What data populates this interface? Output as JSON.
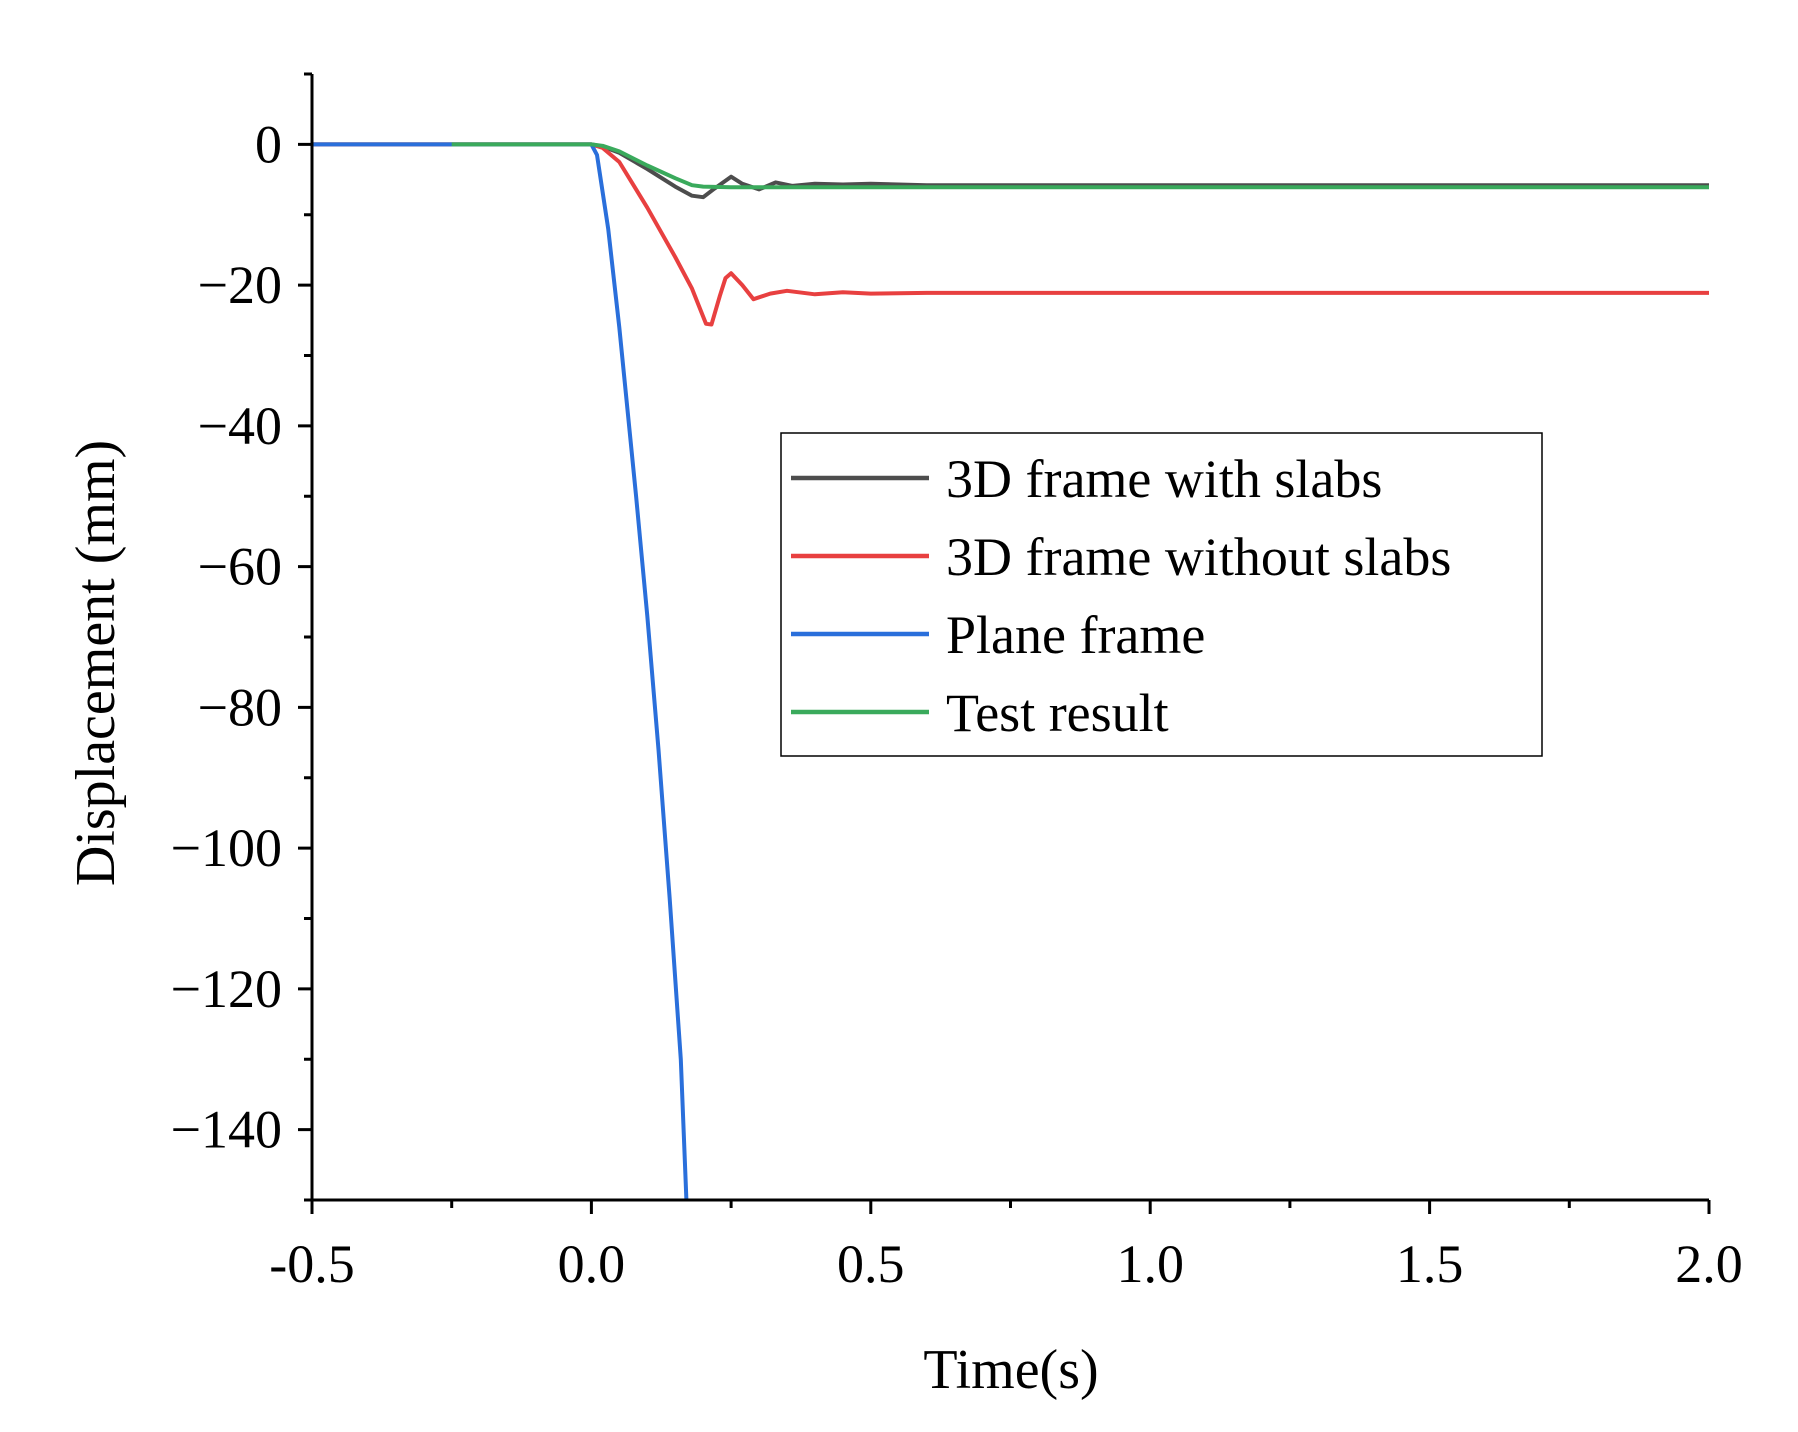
{
  "chart_data": {
    "type": "line",
    "title": "",
    "xlabel": "Time(s)",
    "ylabel": "Displacement (mm)",
    "xlim": [
      -0.5,
      2.0
    ],
    "ylim": [
      -150,
      10
    ],
    "xticks": [
      -0.5,
      0.0,
      0.5,
      1.0,
      1.5,
      2.0
    ],
    "xtick_labels": [
      "-0.5",
      "0.0",
      "0.5",
      "1.0",
      "1.5",
      "2.0"
    ],
    "yticks": [
      0,
      -20,
      -40,
      -60,
      -80,
      -100,
      -120,
      -140
    ],
    "ytick_labels": [
      "0",
      "−20",
      "−40",
      "−60",
      "−80",
      "−100",
      "−120",
      "−140"
    ],
    "grid": false,
    "legend_position": "center-right",
    "series": [
      {
        "name": "3D frame with slabs",
        "color": "#4d4d4d",
        "x": [
          -0.5,
          0.0,
          0.02,
          0.05,
          0.1,
          0.15,
          0.18,
          0.2,
          0.22,
          0.25,
          0.27,
          0.3,
          0.33,
          0.36,
          0.4,
          0.45,
          0.5,
          0.6,
          0.8,
          1.0,
          1.5,
          2.0
        ],
        "y": [
          0,
          0,
          -0.3,
          -1.2,
          -3.5,
          -6,
          -7.3,
          -7.5,
          -6.3,
          -4.6,
          -5.6,
          -6.4,
          -5.4,
          -5.9,
          -5.6,
          -5.7,
          -5.6,
          -5.8,
          -5.8,
          -5.8,
          -5.8,
          -5.8
        ]
      },
      {
        "name": "3D frame without slabs",
        "color": "#e84040",
        "x": [
          -0.5,
          0.0,
          0.02,
          0.05,
          0.1,
          0.15,
          0.18,
          0.205,
          0.215,
          0.23,
          0.24,
          0.25,
          0.27,
          0.29,
          0.32,
          0.35,
          0.4,
          0.45,
          0.5,
          0.6,
          1.0,
          1.5,
          2.0
        ],
        "y": [
          0,
          0,
          -0.5,
          -2.5,
          -9,
          -16,
          -20.5,
          -25.5,
          -25.6,
          -21.5,
          -19,
          -18.3,
          -20,
          -22,
          -21.2,
          -20.8,
          -21.3,
          -21,
          -21.2,
          -21.1,
          -21.1,
          -21.1,
          -21.1
        ]
      },
      {
        "name": "Plane frame",
        "color": "#2a6fdb",
        "x": [
          -0.5,
          0.0,
          0.01,
          0.03,
          0.05,
          0.08,
          0.1,
          0.12,
          0.14,
          0.16,
          0.17
        ],
        "y": [
          0,
          0,
          -1.5,
          -12,
          -26,
          -50,
          -67,
          -86,
          -107,
          -130,
          -150
        ]
      },
      {
        "name": "Test result",
        "color": "#3aaa5c",
        "x": [
          -0.25,
          0.0,
          0.02,
          0.05,
          0.1,
          0.15,
          0.18,
          0.2,
          0.25,
          0.3,
          0.4,
          0.5,
          1.0,
          1.5,
          2.0
        ],
        "y": [
          0,
          0,
          -0.2,
          -1.0,
          -3.0,
          -4.8,
          -5.8,
          -6.0,
          -6.1,
          -6.1,
          -6.1,
          -6.1,
          -6.1,
          -6.1,
          -6.1
        ]
      }
    ]
  }
}
